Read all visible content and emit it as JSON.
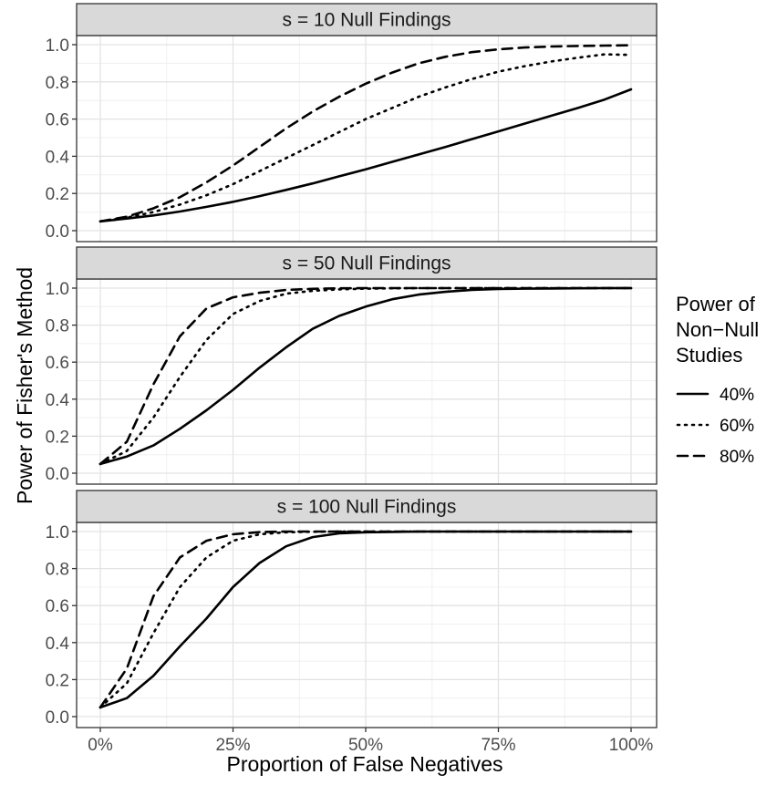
{
  "chart_data": {
    "type": "line",
    "xlabel": "Proportion of False Negatives",
    "ylabel": "Power of Fisher's Method",
    "xlim": [
      0,
      1
    ],
    "ylim": [
      0,
      1
    ],
    "x_ticks": [
      0,
      0.25,
      0.5,
      0.75,
      1
    ],
    "x_tick_labels": [
      "0%",
      "25%",
      "50%",
      "75%",
      "100%"
    ],
    "y_ticks": [
      0,
      0.2,
      0.4,
      0.6,
      0.8,
      1
    ],
    "y_tick_labels": [
      "0.0",
      "0.2",
      "0.4",
      "0.6",
      "0.8",
      "1.0"
    ],
    "grid": true,
    "legend": {
      "title_lines": [
        "Power of",
        "Non−Null",
        "Studies"
      ],
      "placement": "right",
      "entries": [
        {
          "label": "40%",
          "linestyle": "solid"
        },
        {
          "label": "60%",
          "linestyle": "dotted"
        },
        {
          "label": "80%",
          "linestyle": "dashed"
        }
      ]
    },
    "x": [
      0,
      0.05,
      0.1,
      0.15,
      0.2,
      0.25,
      0.3,
      0.35,
      0.4,
      0.45,
      0.5,
      0.55,
      0.6,
      0.65,
      0.7,
      0.75,
      0.8,
      0.85,
      0.9,
      0.95,
      1.0
    ],
    "panels": [
      {
        "strip": "s = 10 Null Findings",
        "series": [
          {
            "name": "40%",
            "values": [
              0.05,
              0.065,
              0.082,
              0.103,
              0.128,
              0.155,
              0.186,
              0.219,
              0.254,
              0.292,
              0.33,
              0.37,
              0.41,
              0.45,
              0.492,
              0.534,
              0.576,
              0.618,
              0.66,
              0.705,
              0.76
            ]
          },
          {
            "name": "60%",
            "values": [
              0.05,
              0.07,
              0.1,
              0.14,
              0.19,
              0.25,
              0.32,
              0.39,
              0.46,
              0.53,
              0.6,
              0.66,
              0.72,
              0.77,
              0.815,
              0.855,
              0.885,
              0.91,
              0.93,
              0.948,
              0.945
            ]
          },
          {
            "name": "80%",
            "values": [
              0.05,
              0.075,
              0.12,
              0.18,
              0.26,
              0.35,
              0.45,
              0.55,
              0.64,
              0.72,
              0.79,
              0.85,
              0.9,
              0.935,
              0.96,
              0.975,
              0.985,
              0.99,
              0.993,
              0.995,
              0.997
            ]
          }
        ]
      },
      {
        "strip": "s = 50 Null Findings",
        "series": [
          {
            "name": "40%",
            "values": [
              0.05,
              0.09,
              0.15,
              0.24,
              0.34,
              0.45,
              0.57,
              0.68,
              0.78,
              0.85,
              0.9,
              0.94,
              0.965,
              0.98,
              0.99,
              0.995,
              0.997,
              0.998,
              0.999,
              1.0,
              1.0
            ]
          },
          {
            "name": "60%",
            "values": [
              0.05,
              0.12,
              0.3,
              0.52,
              0.72,
              0.86,
              0.93,
              0.97,
              0.985,
              0.993,
              0.997,
              0.999,
              1.0,
              1.0,
              1.0,
              1.0,
              1.0,
              1.0,
              1.0,
              1.0,
              1.0
            ]
          },
          {
            "name": "80%",
            "values": [
              0.05,
              0.17,
              0.48,
              0.74,
              0.89,
              0.95,
              0.975,
              0.99,
              0.996,
              0.999,
              1.0,
              1.0,
              1.0,
              1.0,
              1.0,
              1.0,
              1.0,
              1.0,
              1.0,
              1.0,
              1.0
            ]
          }
        ]
      },
      {
        "strip": "s = 100 Null Findings",
        "series": [
          {
            "name": "40%",
            "values": [
              0.05,
              0.1,
              0.22,
              0.38,
              0.53,
              0.7,
              0.83,
              0.92,
              0.97,
              0.99,
              0.996,
              0.998,
              1.0,
              1.0,
              1.0,
              1.0,
              1.0,
              1.0,
              1.0,
              1.0,
              1.0
            ]
          },
          {
            "name": "60%",
            "values": [
              0.05,
              0.18,
              0.45,
              0.7,
              0.86,
              0.95,
              0.985,
              0.996,
              0.999,
              1.0,
              1.0,
              1.0,
              1.0,
              1.0,
              1.0,
              1.0,
              1.0,
              1.0,
              1.0,
              1.0,
              1.0
            ]
          },
          {
            "name": "80%",
            "values": [
              0.05,
              0.26,
              0.65,
              0.86,
              0.95,
              0.985,
              0.997,
              1.0,
              1.0,
              1.0,
              1.0,
              1.0,
              1.0,
              1.0,
              1.0,
              1.0,
              1.0,
              1.0,
              1.0,
              1.0,
              1.0
            ]
          }
        ]
      }
    ]
  }
}
